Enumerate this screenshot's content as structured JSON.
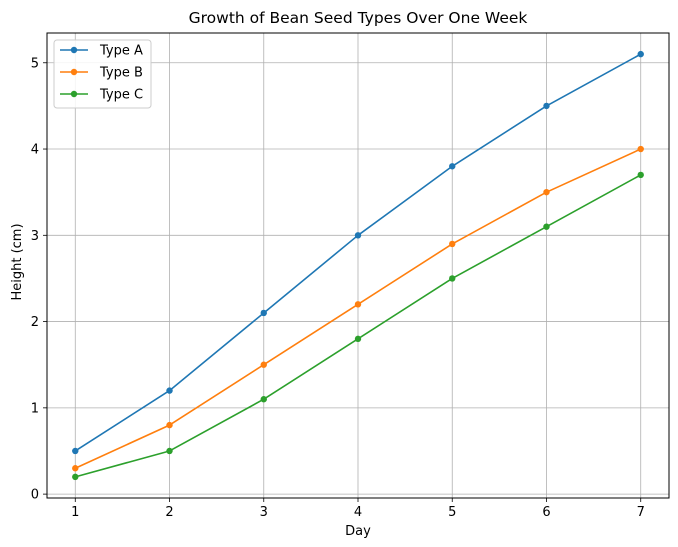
{
  "chart_data": {
    "type": "line",
    "title": "Growth of Bean Seed Types Over One Week",
    "xlabel": "Day",
    "ylabel": "Height (cm)",
    "x": [
      1,
      2,
      3,
      4,
      5,
      6,
      7
    ],
    "xlim": [
      0.7,
      7.3
    ],
    "ylim": [
      -0.045,
      5.345
    ],
    "xticks": [
      1,
      2,
      3,
      4,
      5,
      6,
      7
    ],
    "yticks": [
      0,
      1,
      2,
      3,
      4,
      5
    ],
    "grid": true,
    "legend_position": "top-left",
    "series": [
      {
        "name": "Type A",
        "color": "#1f77b4",
        "marker": "circle",
        "values": [
          0.5,
          1.2,
          2.1,
          3.0,
          3.8,
          4.5,
          5.1
        ]
      },
      {
        "name": "Type B",
        "color": "#ff7f0e",
        "marker": "circle",
        "values": [
          0.3,
          0.8,
          1.5,
          2.2,
          2.9,
          3.5,
          4.0
        ]
      },
      {
        "name": "Type C",
        "color": "#2ca02c",
        "marker": "circle",
        "values": [
          0.2,
          0.5,
          1.1,
          1.8,
          2.5,
          3.1,
          3.7
        ]
      }
    ]
  }
}
